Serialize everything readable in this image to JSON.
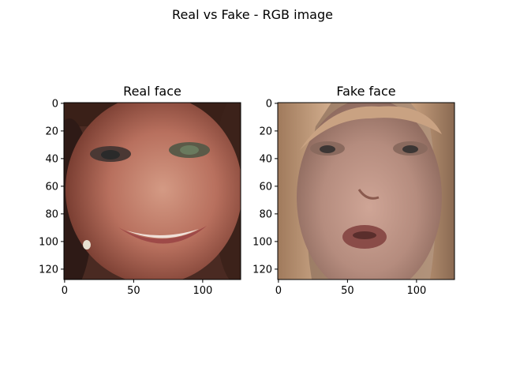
{
  "figure": {
    "title": "Real vs Fake - RGB image"
  },
  "chart_data": [
    {
      "type": "image",
      "title": "Real face",
      "xlim": [
        0,
        127
      ],
      "ylim": [
        127,
        0
      ],
      "xticks": [
        0,
        50,
        100
      ],
      "yticks": [
        0,
        20,
        40,
        60,
        80,
        100,
        120
      ],
      "image_size": [
        128,
        128
      ],
      "image_description_colors": {
        "background": "#4a2a22",
        "skin": "#b8705e",
        "skin_light": "#d49a84",
        "hair": "#3a2018",
        "lips": "#9e4a48",
        "teeth": "#f0e0d8",
        "eyes": "#5f6a55"
      }
    },
    {
      "type": "image",
      "title": "Fake face",
      "xlim": [
        0,
        127
      ],
      "ylim": [
        127,
        0
      ],
      "xticks": [
        0,
        50,
        100
      ],
      "yticks": [
        0,
        20,
        40,
        60,
        80,
        100,
        120
      ],
      "image_size": [
        128,
        128
      ],
      "image_description_colors": {
        "background": "#8a7468",
        "skin": "#b58c7e",
        "skin_light": "#cfa596",
        "hair": "#c49a78",
        "lips": "#8a4c48",
        "eyes": "#5a5550"
      }
    }
  ]
}
